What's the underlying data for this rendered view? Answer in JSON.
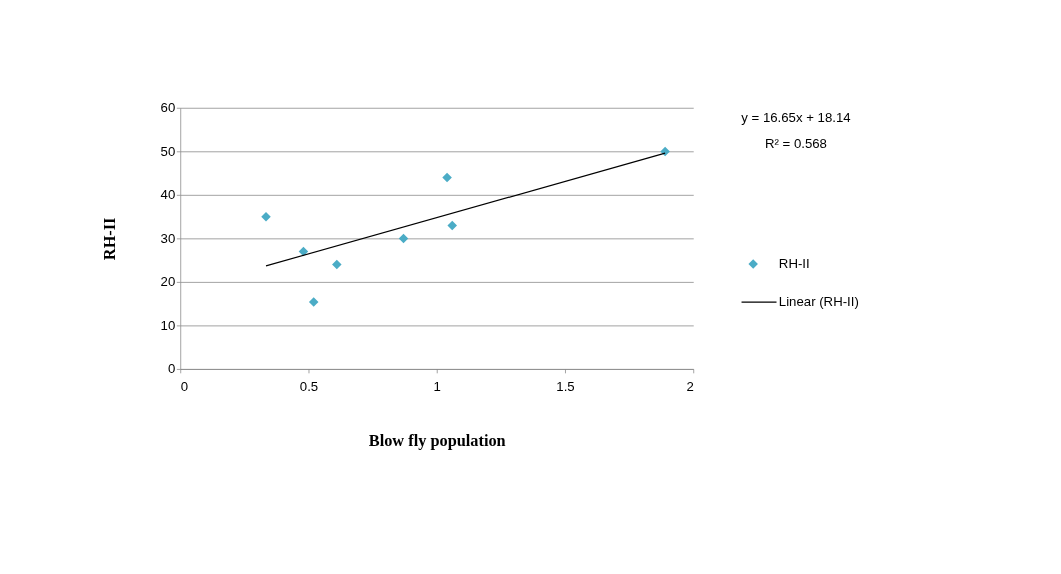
{
  "chart_data": {
    "type": "scatter",
    "xlabel": "Blow fly population",
    "ylabel": "RH-II",
    "xlim": [
      0,
      2
    ],
    "xticks": [
      0,
      0.5,
      1,
      1.5,
      2
    ],
    "ylim": [
      0,
      60
    ],
    "yticks": [
      0,
      10,
      20,
      30,
      40,
      50,
      60
    ],
    "grid": "y",
    "legend": "right",
    "annotations": [
      "y = 16.65x + 18.14",
      "R² = 0.568"
    ],
    "series": [
      {
        "name": "RH-II",
        "marker": "diamond",
        "color": "#4bacc6",
        "x": [
          0.334,
          0.48,
          0.52,
          0.61,
          0.87,
          1.04,
          1.06,
          1.89
        ],
        "values": [
          35,
          27,
          15.4,
          24,
          30,
          44,
          33,
          50
        ]
      },
      {
        "name": "Linear (RH-II)",
        "type": "line",
        "color": "#000000",
        "line_style": "solid",
        "x": [
          0.334,
          1.89
        ],
        "values": [
          23.7,
          49.6
        ]
      }
    ]
  }
}
